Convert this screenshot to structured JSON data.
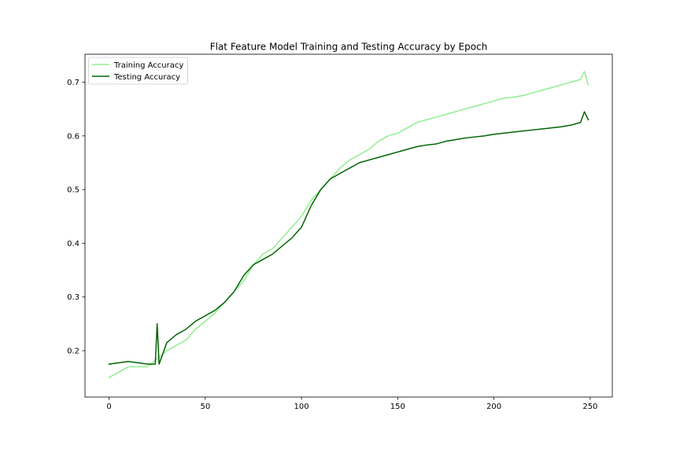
{
  "chart_data": {
    "type": "line",
    "title": "Flat Feature Model Training and Testing Accuracy by Epoch",
    "xlabel": "",
    "ylabel": "",
    "xlim": [
      -12.5,
      261.5
    ],
    "ylim": [
      0.1137,
      0.752
    ],
    "xticks": [
      0,
      50,
      100,
      150,
      200,
      250
    ],
    "yticks": [
      0.2,
      0.3,
      0.4,
      0.5,
      0.6,
      0.7
    ],
    "ytick_labels": [
      "0.2",
      "0.3",
      "0.4",
      "0.5",
      "0.6",
      "0.7"
    ],
    "legend_position": "upper-left",
    "grid": false,
    "series": [
      {
        "name": "Training Accuracy",
        "color": "#90ee90",
        "x": [
          0,
          10,
          20,
          25,
          30,
          35,
          40,
          45,
          50,
          55,
          60,
          65,
          70,
          75,
          80,
          85,
          90,
          95,
          100,
          105,
          110,
          115,
          120,
          125,
          130,
          135,
          140,
          145,
          150,
          155,
          160,
          165,
          170,
          175,
          180,
          185,
          190,
          195,
          200,
          205,
          210,
          215,
          220,
          225,
          230,
          235,
          240,
          245,
          247,
          249
        ],
        "y": [
          0.15,
          0.17,
          0.17,
          0.185,
          0.2,
          0.21,
          0.22,
          0.24,
          0.255,
          0.27,
          0.29,
          0.31,
          0.33,
          0.36,
          0.38,
          0.39,
          0.41,
          0.43,
          0.45,
          0.48,
          0.5,
          0.52,
          0.54,
          0.555,
          0.565,
          0.575,
          0.59,
          0.6,
          0.605,
          0.615,
          0.625,
          0.63,
          0.635,
          0.64,
          0.645,
          0.65,
          0.655,
          0.66,
          0.665,
          0.67,
          0.672,
          0.675,
          0.68,
          0.685,
          0.69,
          0.695,
          0.7,
          0.705,
          0.72,
          0.695
        ]
      },
      {
        "name": "Testing Accuracy",
        "color": "#006400",
        "x": [
          0,
          10,
          20,
          24,
          25,
          26,
          30,
          35,
          40,
          45,
          50,
          55,
          60,
          65,
          70,
          75,
          80,
          85,
          90,
          95,
          100,
          105,
          110,
          115,
          120,
          125,
          130,
          135,
          140,
          145,
          150,
          155,
          160,
          165,
          170,
          175,
          180,
          185,
          190,
          195,
          200,
          205,
          210,
          215,
          220,
          225,
          230,
          235,
          240,
          245,
          247,
          249
        ],
        "y": [
          0.175,
          0.18,
          0.175,
          0.175,
          0.25,
          0.175,
          0.215,
          0.23,
          0.24,
          0.255,
          0.265,
          0.275,
          0.29,
          0.31,
          0.34,
          0.36,
          0.37,
          0.38,
          0.395,
          0.41,
          0.43,
          0.47,
          0.5,
          0.52,
          0.53,
          0.54,
          0.55,
          0.555,
          0.56,
          0.565,
          0.57,
          0.575,
          0.58,
          0.583,
          0.585,
          0.59,
          0.593,
          0.596,
          0.598,
          0.6,
          0.603,
          0.605,
          0.607,
          0.609,
          0.611,
          0.613,
          0.615,
          0.617,
          0.62,
          0.625,
          0.645,
          0.63
        ]
      }
    ]
  }
}
